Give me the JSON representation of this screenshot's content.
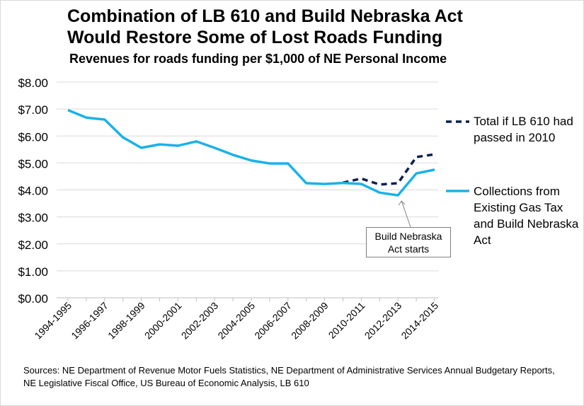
{
  "title_line1": "Combination of LB 610 and Build Nebraska Act",
  "title_line2": "Would Restore Some of Lost Roads Funding",
  "subtitle": "Revenues for roads funding per $1,000 of NE Personal Income",
  "sources": "Sources: NE Department of Revenue Motor Fuels Statistics, NE Department of Administrative Services Annual Budgetary Reports, NE Legislative Fiscal Office, US Bureau of Economic Analysis, LB 610",
  "annotation": "Build Nebraska Act starts",
  "colors": {
    "series_lb610": "#0d1f4f",
    "series_collections": "#19b2e8",
    "gridline": "#d9d9d9",
    "axis": "#bfbfbf"
  },
  "chart_data": {
    "type": "line",
    "title": "Combination of LB 610 and Build Nebraska Act Would Restore Some of Lost Roads Funding",
    "subtitle": "Revenues for roads funding per $1,000 of NE Personal Income",
    "x": [
      "1994-1995",
      "1995-1996",
      "1996-1997",
      "1997-1998",
      "1998-1999",
      "1999-2000",
      "2000-2001",
      "2001-2002",
      "2002-2003",
      "2003-2004",
      "2004-2005",
      "2005-2006",
      "2006-2007",
      "2007-2008",
      "2008-2009",
      "2009-2010",
      "2010-2011",
      "2011-2012",
      "2012-2013",
      "2013-2014",
      "2014-2015"
    ],
    "x_tick_labels": [
      "1994-1995",
      "",
      "1996-1997",
      "",
      "1998-1999",
      "",
      "2000-2001",
      "",
      "2002-2003",
      "",
      "2004-2005",
      "",
      "2006-2007",
      "",
      "2008-2009",
      "",
      "2010-2011",
      "",
      "2012-2013",
      "",
      "2014-2015"
    ],
    "y_ticks": [
      "$0.00",
      "$1.00",
      "$2.00",
      "$3.00",
      "$4.00",
      "$5.00",
      "$6.00",
      "$7.00",
      "$8.00"
    ],
    "ylim": [
      0,
      8
    ],
    "grid": true,
    "legend_position": "right",
    "series": [
      {
        "name": "Total if LB 610 had passed in 2010",
        "style": "dashed",
        "values": [
          null,
          null,
          null,
          null,
          null,
          null,
          null,
          null,
          null,
          null,
          null,
          null,
          null,
          null,
          null,
          4.27,
          4.42,
          4.2,
          4.25,
          5.22,
          5.32
        ]
      },
      {
        "name": "Collections from Existing Gas Tax and Build Nebraska Act",
        "style": "solid",
        "values": [
          6.96,
          6.68,
          6.61,
          5.95,
          5.56,
          5.69,
          5.64,
          5.8,
          5.56,
          5.3,
          5.09,
          4.98,
          4.98,
          4.25,
          4.22,
          4.26,
          4.22,
          3.9,
          3.8,
          4.61,
          4.75
        ]
      }
    ],
    "annotations": [
      {
        "text": "Build Nebraska Act starts",
        "x": "2012-2013",
        "y": 3.8
      }
    ]
  }
}
